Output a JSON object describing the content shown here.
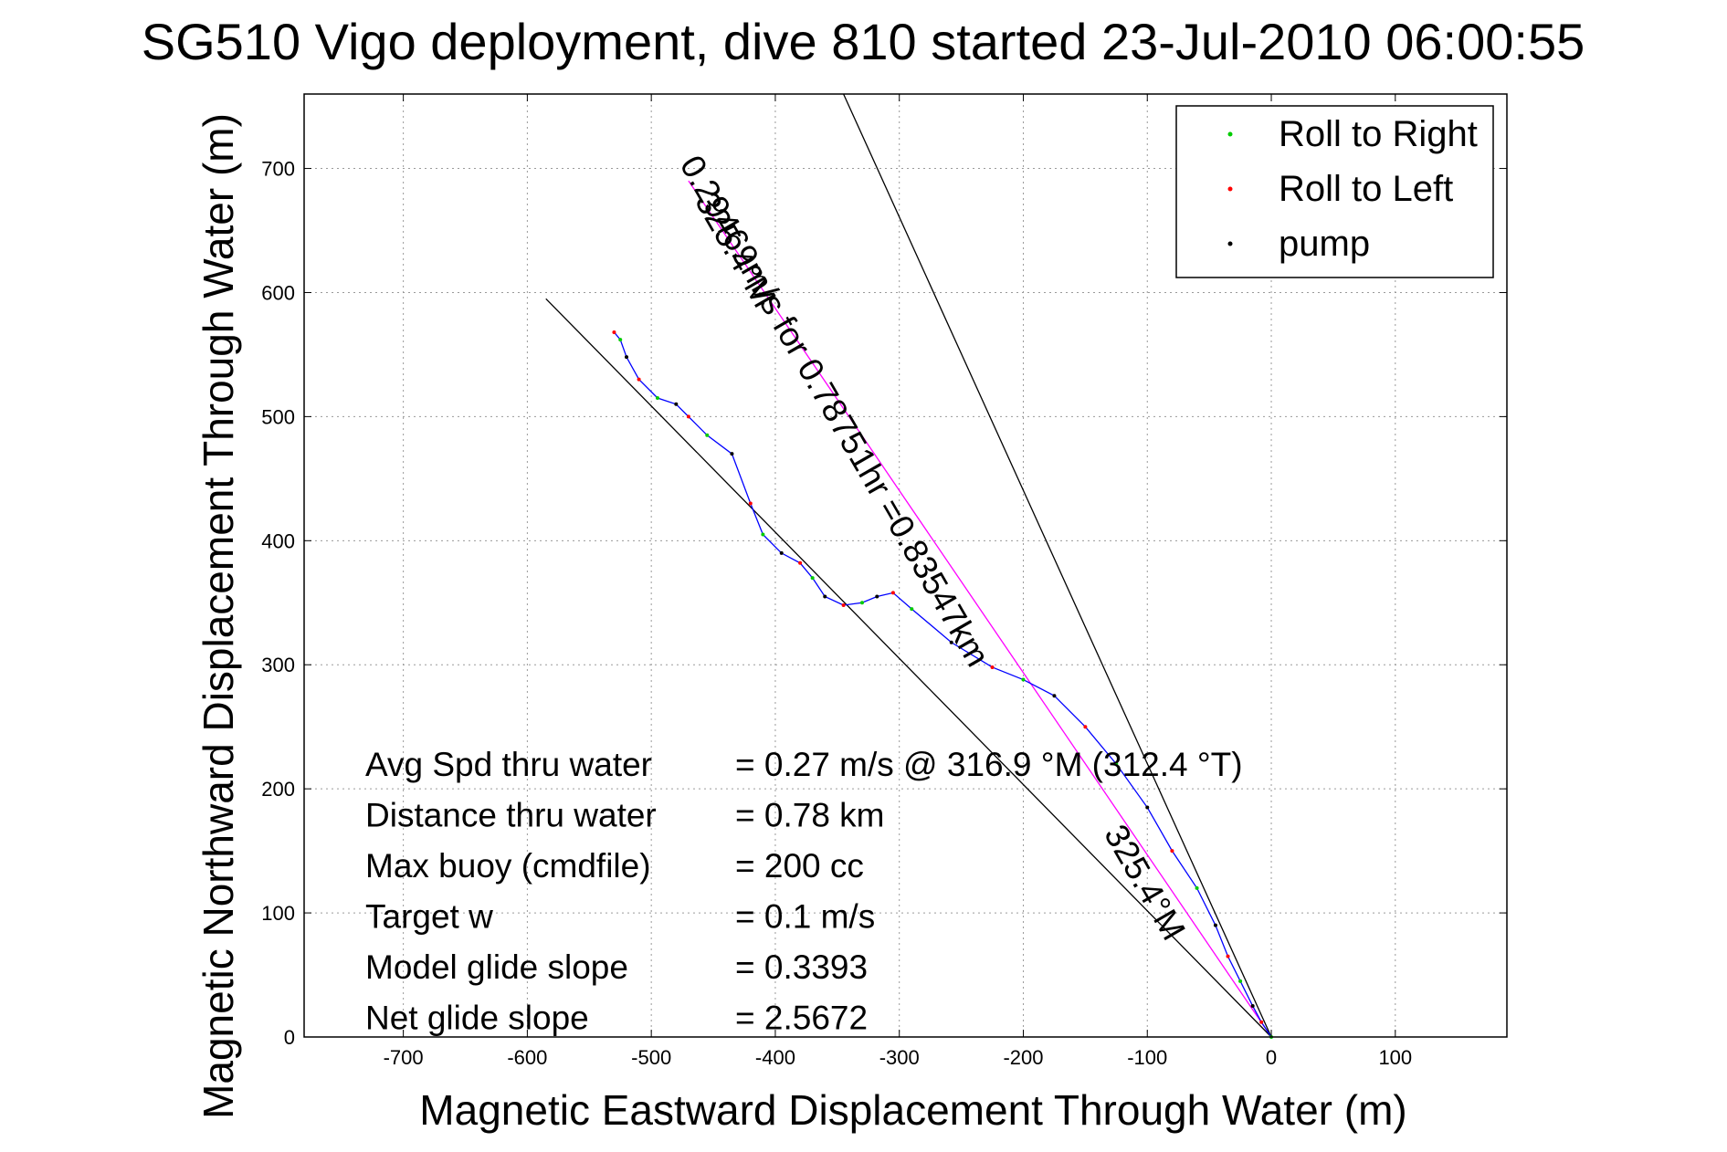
{
  "chart_data": {
    "type": "line",
    "title": "SG510 Vigo deployment, dive 810 started 23-Jul-2010 06:00:55",
    "xlabel": "Magnetic Eastward Displacement Through Water (m)",
    "ylabel": "Magnetic Northward Displacement Through Water (m)",
    "xlim": [
      -780,
      190
    ],
    "ylim": [
      0,
      760
    ],
    "xticks": [
      -700,
      -600,
      -500,
      -400,
      -300,
      -200,
      -100,
      0,
      100
    ],
    "yticks": [
      0,
      100,
      200,
      300,
      400,
      500,
      600,
      700
    ],
    "grid": true,
    "legend_position": "top-right",
    "colors": {
      "roll_right": "#00cc00",
      "roll_left": "#ff0000",
      "pump": "#000000",
      "track": "#0000ff",
      "heading_line": "#ff00ff",
      "guide": "#000000"
    },
    "series": [
      {
        "name": "Roll to Right",
        "marker": "dot",
        "color": "#00cc00"
      },
      {
        "name": "Roll to Left",
        "marker": "dot",
        "color": "#ff0000"
      },
      {
        "name": "pump",
        "marker": "dot",
        "color": "#000000"
      }
    ],
    "track": {
      "x": [
        0,
        -8,
        -15,
        -25,
        -35,
        -45,
        -60,
        -80,
        -100,
        -125,
        -150,
        -175,
        -200,
        -225,
        -258,
        -290,
        -305,
        -318,
        -330,
        -345,
        -360,
        -370,
        -380,
        -395,
        -410,
        -420,
        -435,
        -455,
        -470,
        -480,
        -495,
        -510,
        -520,
        -525,
        -530
      ],
      "y": [
        0,
        12,
        25,
        45,
        65,
        90,
        120,
        150,
        185,
        220,
        250,
        275,
        288,
        298,
        318,
        345,
        358,
        355,
        350,
        348,
        355,
        370,
        382,
        390,
        405,
        430,
        470,
        485,
        500,
        510,
        515,
        530,
        548,
        562,
        568
      ]
    },
    "heading_lines": [
      {
        "label": "325.4°M",
        "x": [
          0,
          -470
        ],
        "y": [
          0,
          690
        ]
      },
      {
        "label": "",
        "x": [
          0,
          -345
        ],
        "y": [
          0,
          760
        ]
      },
      {
        "label": "",
        "x": [
          0,
          -585
        ],
        "y": [
          0,
          595
        ]
      }
    ],
    "line_annotations": [
      {
        "text": "325.4°M",
        "x": -110,
        "y": 120,
        "angle": 60
      },
      {
        "text": "0.29469m/s for 0.78751hr =0.83547km",
        "x": -360,
        "y": 500,
        "angle": 60
      },
      {
        "text": "325.4°M",
        "x": -440,
        "y": 630,
        "angle": 60
      }
    ],
    "stats": [
      {
        "label": "Avg Spd thru water",
        "value": "=  0.27 m/s @ 316.9 °M (312.4 °T)"
      },
      {
        "label": "Distance thru water",
        "value": "=  0.78 km"
      },
      {
        "label": "Max buoy (cmdfile)",
        "value": "= 200 cc"
      },
      {
        "label": "Target w",
        "value": "= 0.1 m/s"
      },
      {
        "label": "Model glide slope",
        "value": "= 0.3393"
      },
      {
        "label": "Net glide slope",
        "value": "= 2.5672"
      }
    ]
  }
}
